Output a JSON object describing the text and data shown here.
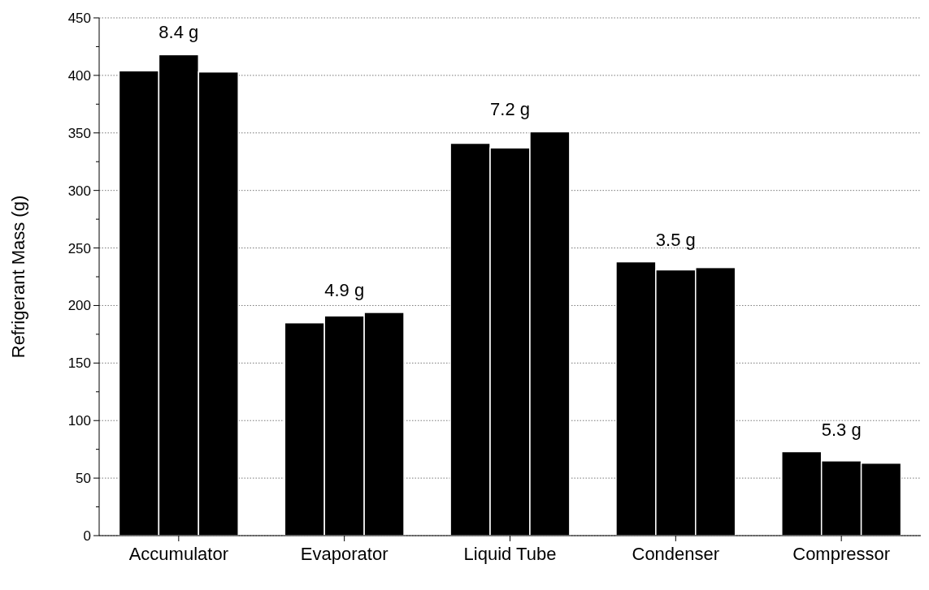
{
  "chart_data": {
    "type": "bar",
    "ylabel": "Refrigerant Mass (g)",
    "categories": [
      "Accumulator",
      "Evaporator",
      "Liquid Tube",
      "Condenser",
      "Compressor"
    ],
    "series": [
      {
        "color": "#000000",
        "values": [
          404,
          185,
          341,
          238,
          73
        ]
      },
      {
        "color": "#000000",
        "values": [
          418,
          191,
          337,
          231,
          65
        ]
      },
      {
        "color": "#000000",
        "values": [
          403,
          194,
          351,
          233,
          63
        ]
      }
    ],
    "ylim": [
      0,
      450
    ],
    "yticks": [
      0,
      {
        "value": 25,
        "label": null
      },
      50,
      {
        "value": 75,
        "label": null
      },
      100,
      {
        "value": 125,
        "label": null
      },
      150,
      {
        "value": 175,
        "label": null
      },
      200,
      {
        "value": 225,
        "label": null
      },
      250,
      {
        "value": 275,
        "label": null
      },
      300,
      {
        "value": 325,
        "label": null
      },
      350,
      {
        "value": 375,
        "label": null
      },
      400,
      {
        "value": 425,
        "label": null
      },
      450
    ],
    "grid": "y",
    "annotations": [
      "8.4 g",
      "4.9 g",
      "7.2 g",
      "3.5 g",
      "5.3 g"
    ]
  }
}
